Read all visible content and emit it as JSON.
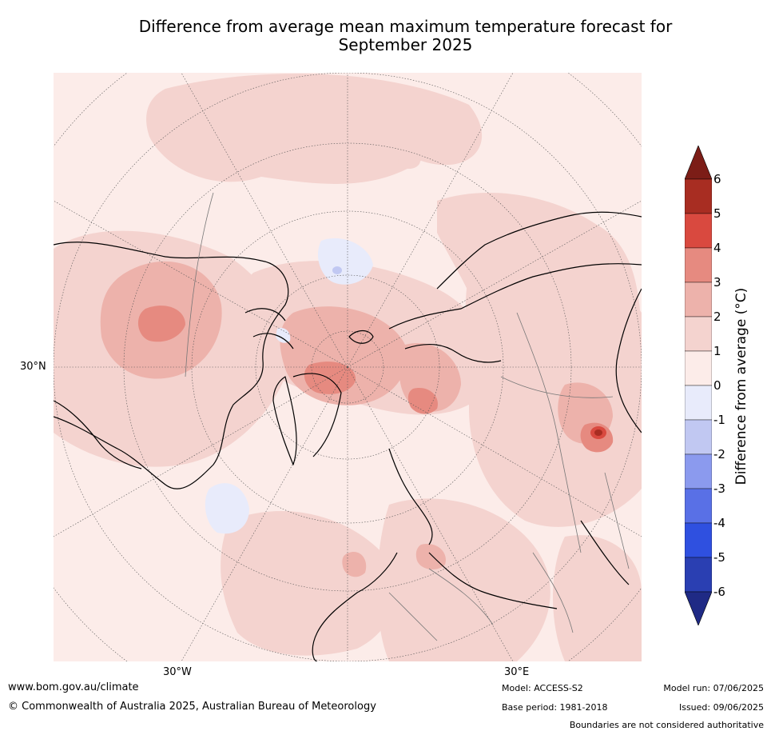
{
  "title_line1": "Difference from average mean maximum temperature forecast for",
  "title_line2": "September 2025",
  "map": {
    "lat_labels": [
      "30°N"
    ],
    "lon_labels": [
      "30°W",
      "30°E"
    ],
    "colors": {
      "c_0_1": "#fcece9",
      "c_1_2": "#f4d3cf",
      "c_2_3": "#edb2ab",
      "c_3_4": "#e68a80",
      "c_4_5": "#d9493f",
      "c_5_6": "#a82d22",
      "c_m1_0": "#e8ebfb",
      "c_m2_m1": "#c1c8f2"
    }
  },
  "colorbar": {
    "label": "Difference from average (°C)",
    "ticks": [
      "6",
      "5",
      "4",
      "3",
      "2",
      "1",
      "0",
      "-1",
      "-2",
      "-3",
      "-4",
      "-5",
      "-6"
    ],
    "colors": [
      "#7c1d17",
      "#a82d22",
      "#d9493f",
      "#e68a80",
      "#edb2ab",
      "#f4d3cf",
      "#fcece9",
      "#e8ebfb",
      "#c1c8f2",
      "#8b9aee",
      "#5970e6",
      "#2f50e0",
      "#2a3fb2",
      "#1f2a85"
    ]
  },
  "footer": {
    "url": "www.bom.gov.au/climate",
    "copyright": "© Commonwealth of Australia 2025, Australian Bureau of Meteorology",
    "model": "Model: ACCESS-S2",
    "base_period": "Base period: 1981-2018",
    "model_run": "Model run: 07/06/2025",
    "issued": "Issued: 09/06/2025",
    "disclaimer": "Boundaries are not considered authoritative"
  }
}
